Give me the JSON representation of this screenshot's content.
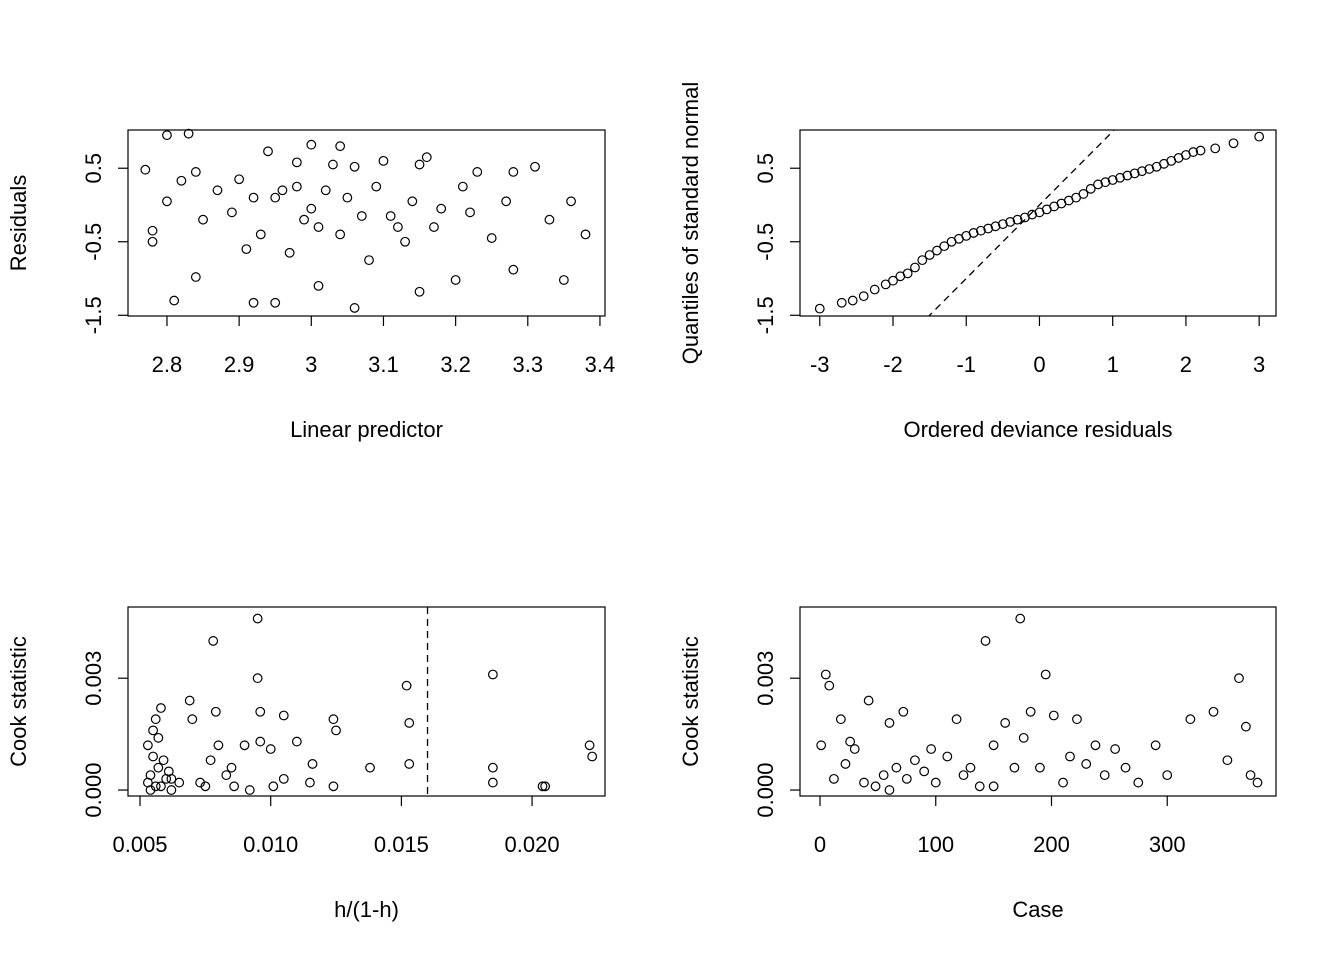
{
  "chart_data": [
    {
      "type": "scatter",
      "xlabel": "Linear predictor",
      "ylabel": "Residuals",
      "xlim": [
        2.746,
        3.407
      ],
      "ylim": [
        -1.51,
        1.02
      ],
      "xticks": [
        2.8,
        2.9,
        3.0,
        3.1,
        3.2,
        3.3,
        3.4
      ],
      "yticks": [
        -1.5,
        -0.5,
        0.5
      ],
      "x": [
        2.77,
        2.78,
        2.78,
        2.8,
        2.8,
        2.81,
        2.82,
        2.83,
        2.84,
        2.84,
        2.85,
        2.87,
        2.89,
        2.9,
        2.91,
        2.92,
        2.92,
        2.93,
        2.94,
        2.95,
        2.95,
        2.96,
        2.97,
        2.98,
        2.98,
        2.99,
        3.0,
        3.0,
        3.01,
        3.01,
        3.02,
        3.03,
        3.04,
        3.04,
        3.05,
        3.06,
        3.06,
        3.07,
        3.08,
        3.09,
        3.1,
        3.11,
        3.12,
        3.13,
        3.14,
        3.15,
        3.15,
        3.16,
        3.17,
        3.18,
        3.2,
        3.21,
        3.22,
        3.23,
        3.25,
        3.27,
        3.28,
        3.28,
        3.31,
        3.33,
        3.35,
        3.36,
        3.38
      ],
      "values": [
        0.48,
        -0.5,
        -0.35,
        0.05,
        0.95,
        -1.3,
        0.33,
        0.97,
        -0.98,
        0.45,
        -0.2,
        0.2,
        -0.1,
        0.35,
        -0.6,
        0.1,
        -1.33,
        -0.4,
        0.73,
        -1.33,
        0.1,
        0.2,
        -0.65,
        0.25,
        0.58,
        -0.2,
        0.82,
        -0.05,
        -1.1,
        -0.3,
        0.2,
        0.55,
        0.8,
        -0.4,
        0.1,
        -1.4,
        0.52,
        -0.15,
        -0.75,
        0.25,
        0.6,
        -0.15,
        -0.3,
        -0.5,
        0.05,
        -1.18,
        0.55,
        0.65,
        -0.3,
        -0.05,
        -1.02,
        0.25,
        -0.1,
        0.45,
        -0.45,
        0.05,
        0.45,
        -0.88,
        0.52,
        -0.2,
        -1.02,
        0.05,
        -0.4
      ]
    },
    {
      "type": "scatter",
      "xlabel": "Ordered deviance residuals",
      "ylabel": "Quantiles of standard normal",
      "xlim": [
        -3.27,
        3.23
      ],
      "ylim": [
        -1.51,
        1.02
      ],
      "xticks": [
        -3,
        -2,
        -1,
        0,
        1,
        2,
        3
      ],
      "yticks": [
        -1.5,
        -0.5,
        0.5
      ],
      "abline": {
        "intercept": 0,
        "slope": 1
      },
      "x": [
        -3,
        -2.7,
        -2.55,
        -2.4,
        -2.25,
        -2.1,
        -2.0,
        -1.9,
        -1.8,
        -1.7,
        -1.6,
        -1.5,
        -1.4,
        -1.3,
        -1.2,
        -1.1,
        -1.0,
        -0.9,
        -0.8,
        -0.7,
        -0.6,
        -0.5,
        -0.4,
        -0.3,
        -0.2,
        -0.1,
        0,
        0.1,
        0.2,
        0.3,
        0.4,
        0.5,
        0.6,
        0.7,
        0.8,
        0.9,
        1.0,
        1.1,
        1.2,
        1.3,
        1.4,
        1.5,
        1.6,
        1.7,
        1.8,
        1.9,
        2.0,
        2.1,
        2.2,
        2.4,
        2.65,
        3.0
      ],
      "values": [
        -1.41,
        -1.33,
        -1.3,
        -1.24,
        -1.15,
        -1.08,
        -1.03,
        -0.97,
        -0.93,
        -0.85,
        -0.75,
        -0.68,
        -0.62,
        -0.56,
        -0.5,
        -0.46,
        -0.42,
        -0.38,
        -0.35,
        -0.32,
        -0.29,
        -0.26,
        -0.23,
        -0.2,
        -0.17,
        -0.13,
        -0.1,
        -0.06,
        -0.02,
        0.02,
        0.06,
        0.1,
        0.15,
        0.22,
        0.28,
        0.31,
        0.34,
        0.37,
        0.4,
        0.43,
        0.46,
        0.49,
        0.52,
        0.56,
        0.6,
        0.64,
        0.68,
        0.72,
        0.74,
        0.77,
        0.84,
        0.93
      ]
    },
    {
      "type": "scatter",
      "xlabel": "h/(1-h)",
      "ylabel": "Cook statistic",
      "xlim": [
        0.00454,
        0.02279
      ],
      "ylim": [
        -0.00016,
        0.00491
      ],
      "xticks": [
        {
          "value": 0.005,
          "label": "0.005"
        },
        {
          "value": 0.01,
          "label": "0.010"
        },
        {
          "value": 0.015,
          "label": "0.015"
        },
        {
          "value": 0.02,
          "label": "0.020"
        }
      ],
      "yticks": [
        {
          "value": 0,
          "label": "0.000"
        },
        {
          "value": 0.003,
          "label": "0.003"
        }
      ],
      "vline": 0.016,
      "x": [
        0.0053,
        0.0053,
        0.0054,
        0.0055,
        0.0055,
        0.0056,
        0.0057,
        0.0057,
        0.0058,
        0.0058,
        0.0059,
        0.006,
        0.0061,
        0.0062,
        0.0065,
        0.0069,
        0.007,
        0.0075,
        0.0077,
        0.0078,
        0.0079,
        0.008,
        0.0083,
        0.0085,
        0.009,
        0.0095,
        0.0095,
        0.0096,
        0.0096,
        0.01,
        0.0101,
        0.0105,
        0.0105,
        0.011,
        0.0115,
        0.0116,
        0.0124,
        0.0124,
        0.0125,
        0.0138,
        0.0152,
        0.0153,
        0.0153,
        0.0185,
        0.0185,
        0.0185,
        0.0204,
        0.0205,
        0.0222,
        0.0223,
        0.0054,
        0.0056,
        0.0062,
        0.0073,
        0.0086,
        0.0092
      ],
      "values": [
        0.0012,
        0.0002,
        0.0004,
        0.0009,
        0.0016,
        0.0019,
        0.0014,
        0.0006,
        0.0022,
        0.0001,
        0.0008,
        0.0003,
        0.0005,
        0.0003,
        0.0002,
        0.0024,
        0.0019,
        0.0001,
        0.0008,
        0.004,
        0.0021,
        0.0012,
        0.0004,
        0.0006,
        0.0012,
        0.0046,
        0.003,
        0.0021,
        0.0013,
        0.0011,
        0.0001,
        0.002,
        0.0003,
        0.0013,
        0.0002,
        0.0007,
        0.0019,
        0.0001,
        0.0016,
        0.0006,
        0.0028,
        0.0018,
        0.0007,
        0.0031,
        0.0006,
        0.0002,
        0.0001,
        0.0001,
        0.0012,
        0.0009,
        0,
        0.0001,
        0,
        0.0002,
        0.0001,
        0
      ]
    },
    {
      "type": "scatter",
      "xlabel": "Case",
      "ylabel": "Cook statistic",
      "xlim": [
        -17.3,
        394
      ],
      "ylim": [
        -0.00016,
        0.00491
      ],
      "xticks": [
        0,
        100,
        200,
        300
      ],
      "yticks": [
        {
          "value": 0,
          "label": "0.000"
        },
        {
          "value": 0.003,
          "label": "0.003"
        }
      ],
      "x": [
        1,
        5,
        8,
        12,
        18,
        22,
        26,
        30,
        38,
        42,
        48,
        55,
        60,
        66,
        72,
        75,
        82,
        90,
        96,
        100,
        110,
        118,
        124,
        130,
        138,
        143,
        150,
        160,
        168,
        173,
        176,
        182,
        190,
        195,
        202,
        210,
        216,
        222,
        230,
        238,
        246,
        255,
        264,
        275,
        290,
        300,
        320,
        340,
        352,
        362,
        368,
        372,
        378,
        60,
        150
      ],
      "values": [
        0.0012,
        0.0031,
        0.0028,
        0.0003,
        0.0019,
        0.0007,
        0.0013,
        0.0011,
        0.0002,
        0.0024,
        0.0001,
        0.0004,
        0.0018,
        0.0006,
        0.0021,
        0.0003,
        0.0008,
        0.0005,
        0.0011,
        0.0002,
        0.0009,
        0.0019,
        0.0004,
        0.0006,
        0.0001,
        0.004,
        0.0012,
        0.0018,
        0.0006,
        0.0046,
        0.0014,
        0.0021,
        0.0006,
        0.0031,
        0.002,
        0.0002,
        0.0009,
        0.0019,
        0.0007,
        0.0012,
        0.0004,
        0.0011,
        0.0006,
        0.0002,
        0.0012,
        0.0004,
        0.0019,
        0.0021,
        0.0008,
        0.003,
        0.0017,
        0.0004,
        0.0002,
        0,
        0.0001
      ]
    }
  ]
}
